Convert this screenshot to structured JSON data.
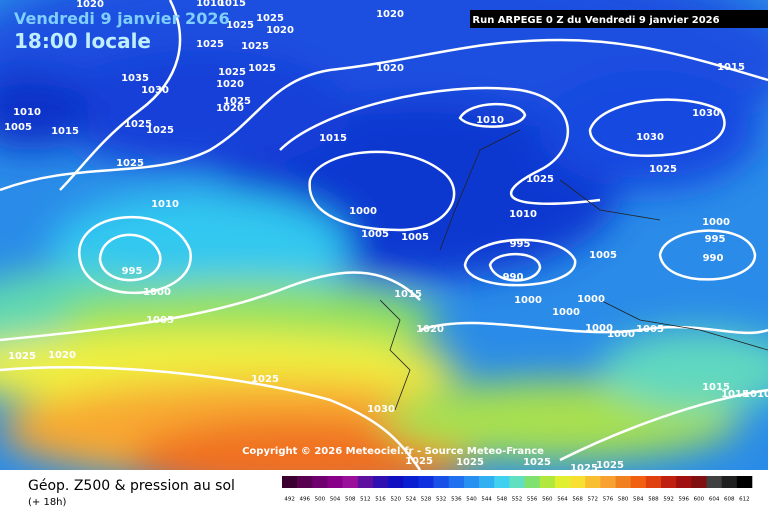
{
  "header": {
    "date": "Vendredi 9 janvier 2026",
    "time": "18:00 locale",
    "run": "Run ARPEGE 0 Z du Vendredi 9 janvier 2026",
    "copyright": "Copyright © 2026 Meteociel.fr - Source Meteo-France"
  },
  "footer": {
    "title": "Géop. Z500 & pression au sol",
    "lead": "(+ 18h)"
  },
  "isobar_labels": [
    1020,
    1025,
    1025,
    1020,
    1025,
    1025,
    1025,
    1020,
    1015,
    1025,
    1020,
    1035,
    1030,
    1025,
    1020,
    1010,
    1005,
    1015,
    1025,
    1025,
    1010,
    1030,
    1030,
    1015,
    1025,
    1025,
    1025,
    1010,
    1000,
    1010,
    1000,
    1005,
    1005,
    995,
    995,
    995,
    990,
    990,
    1005,
    1000,
    1015,
    1000,
    1000,
    1000,
    1005,
    1020,
    1000,
    1000,
    1005,
    1025,
    1020,
    1025,
    1015,
    1015,
    1010,
    1030,
    1025,
    1025,
    1025,
    1025,
    1025,
    1015,
    1010,
    1020
  ],
  "legend": {
    "ticks": [
      492,
      496,
      500,
      504,
      508,
      512,
      516,
      520,
      524,
      528,
      532,
      536,
      540,
      544,
      548,
      552,
      556,
      560,
      564,
      568,
      572,
      576,
      580,
      584,
      588,
      592,
      596,
      600,
      604,
      608,
      612
    ],
    "colors": [
      "#3a0030",
      "#5a0050",
      "#700070",
      "#880088",
      "#9a109a",
      "#6010a0",
      "#3010b0",
      "#1010c0",
      "#0a20d0",
      "#1030e0",
      "#1850e8",
      "#2070f0",
      "#2890f0",
      "#30b0f0",
      "#40d0f0",
      "#60e0c0",
      "#80e070",
      "#b0e840",
      "#e0f030",
      "#f8e030",
      "#f8c030",
      "#f8a030",
      "#f08020",
      "#f06010",
      "#e04010",
      "#c02010",
      "#a01010",
      "#801010",
      "#404040",
      "#202020",
      "#000000"
    ]
  }
}
